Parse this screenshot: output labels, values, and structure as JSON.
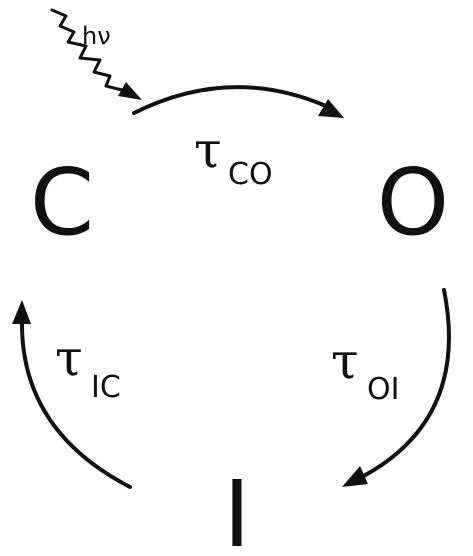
{
  "states": {
    "c": "C",
    "o": "O",
    "i": "I"
  },
  "transitions": {
    "co": {
      "symbol": "τ",
      "sub": "CO"
    },
    "oi": {
      "symbol": "τ",
      "sub": "OI"
    },
    "ic": {
      "symbol": "τ",
      "sub": "IC"
    }
  },
  "excitation": {
    "label": "hν"
  }
}
